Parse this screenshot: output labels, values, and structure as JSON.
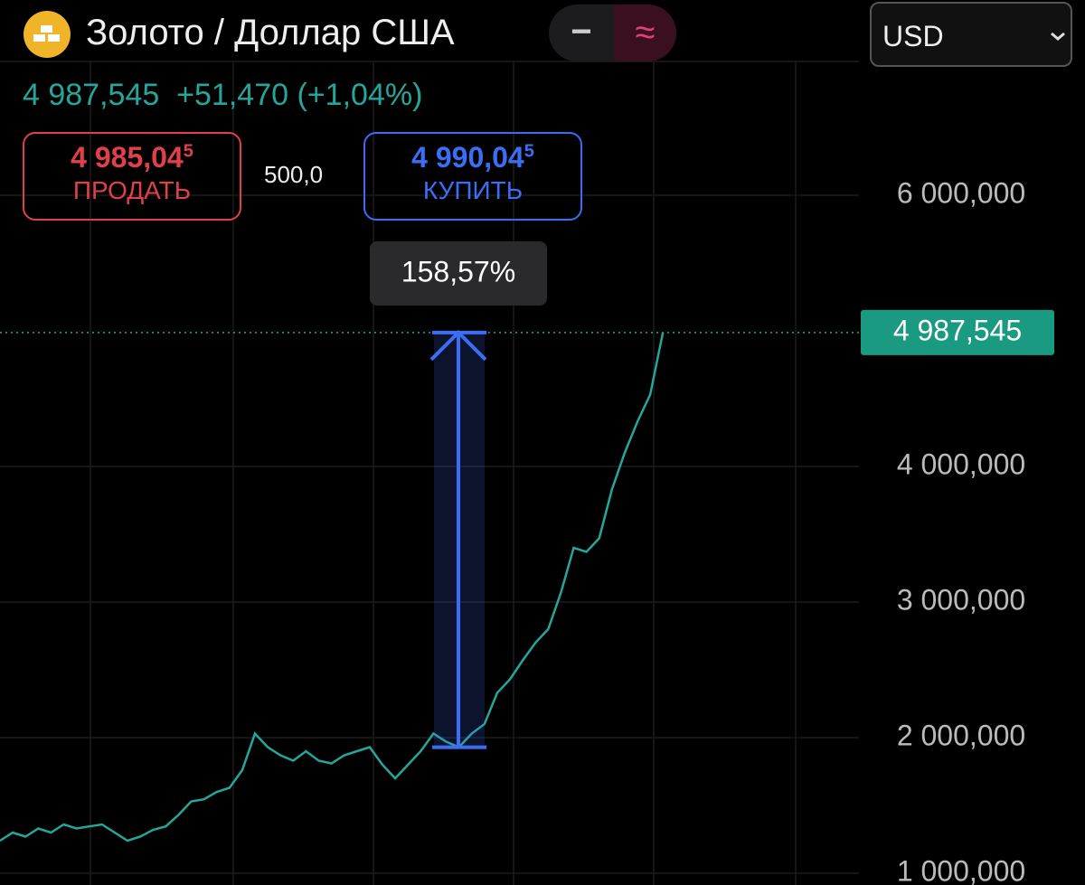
{
  "header": {
    "title": "Золото / Доллар США",
    "toggle_minus": "−",
    "toggle_wave": "≈",
    "currency": "USD"
  },
  "quote": {
    "price": "4 987,545",
    "change": "+51,470",
    "change_pct": "(+1,04%)"
  },
  "sell": {
    "price": "4 985,04",
    "price_sup": "5",
    "label": "ПРОДАТЬ"
  },
  "spread": "500,0",
  "buy": {
    "price": "4 990,04",
    "price_sup": "5",
    "label": "КУПИТЬ"
  },
  "chart_data": {
    "type": "line",
    "color": "#26a69a",
    "values": [
      1240,
      1300,
      1270,
      1330,
      1300,
      1360,
      1330,
      1345,
      1360,
      1300,
      1240,
      1270,
      1320,
      1345,
      1430,
      1530,
      1545,
      1600,
      1630,
      1760,
      2030,
      1930,
      1870,
      1830,
      1900,
      1830,
      1810,
      1870,
      1900,
      1930,
      1800,
      1700,
      1800,
      1900,
      2030,
      1970,
      1930,
      2030,
      2100,
      2330,
      2430,
      2570,
      2700,
      2800,
      3070,
      3400,
      3370,
      3470,
      3830,
      4100,
      4330,
      4530,
      4987.545
    ],
    "ylim": [
      913,
      7440
    ],
    "yticks": [
      {
        "value": 1000,
        "label": "1 000,000"
      },
      {
        "value": 2000,
        "label": "2 000,000"
      },
      {
        "value": 3000,
        "label": "3 000,000"
      },
      {
        "value": 4000,
        "label": "4 000,000"
      },
      {
        "value": 6000,
        "label": "6 000,000"
      }
    ],
    "grid": true,
    "last_price": 4987.545,
    "last_price_label": "4 987,545",
    "measure": {
      "from": 1929,
      "to": 4987.545,
      "label": "158,57%"
    }
  }
}
